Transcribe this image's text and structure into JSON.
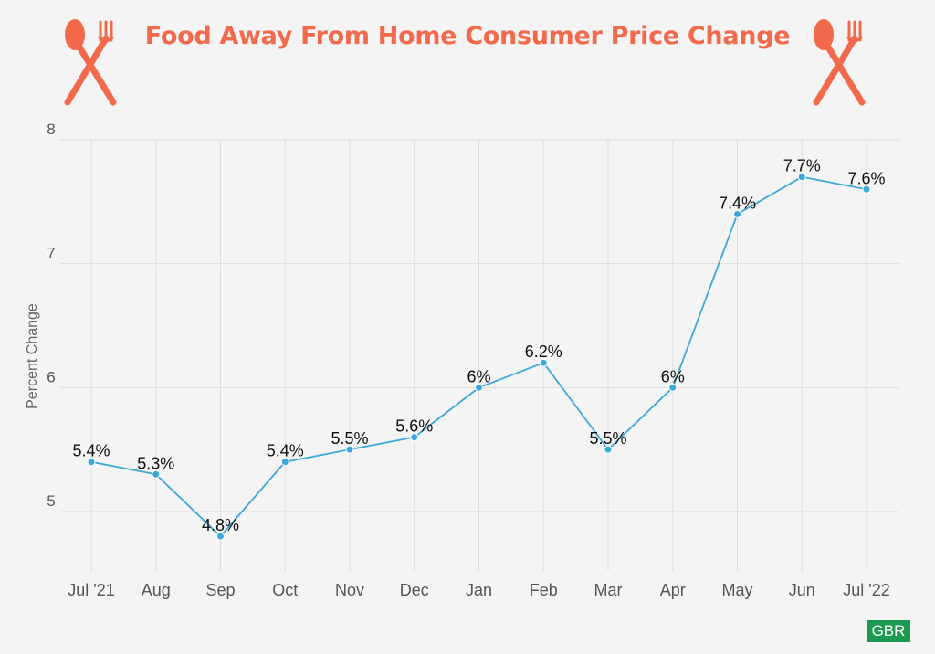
{
  "title": "Food Away From Home Consumer Price Change",
  "brand": "GBR",
  "icons": [
    "fork-and-spoon-icon",
    "fork-and-spoon-icon"
  ],
  "colors": {
    "title": "#f26a4b",
    "icon": "#f26a4b",
    "line": "#3aa8d8",
    "brand": "#1c9a4f",
    "background": "#f4f4f4"
  },
  "chart_data": {
    "type": "line",
    "categories": [
      "Jul '21",
      "Aug",
      "Sep",
      "Oct",
      "Nov",
      "Dec",
      "Jan",
      "Feb",
      "Mar",
      "Apr",
      "May",
      "Jun",
      "Jul '22"
    ],
    "values": [
      5.4,
      5.3,
      4.8,
      5.4,
      5.5,
      5.6,
      6.0,
      6.2,
      5.5,
      6.0,
      7.4,
      7.7,
      7.6
    ],
    "data_labels": [
      "5.4%",
      "5.3%",
      "4.8%",
      "5.4%",
      "5.5%",
      "5.6%",
      "6%",
      "6.2%",
      "5.5%",
      "6%",
      "7.4%",
      "7.7%",
      "7.6%"
    ],
    "ylabel": "Percent Change",
    "xlabel": "",
    "yticks": [
      5,
      6,
      7,
      8
    ],
    "ylim": [
      4.5,
      8.1
    ],
    "grid": true,
    "legend": "none"
  }
}
